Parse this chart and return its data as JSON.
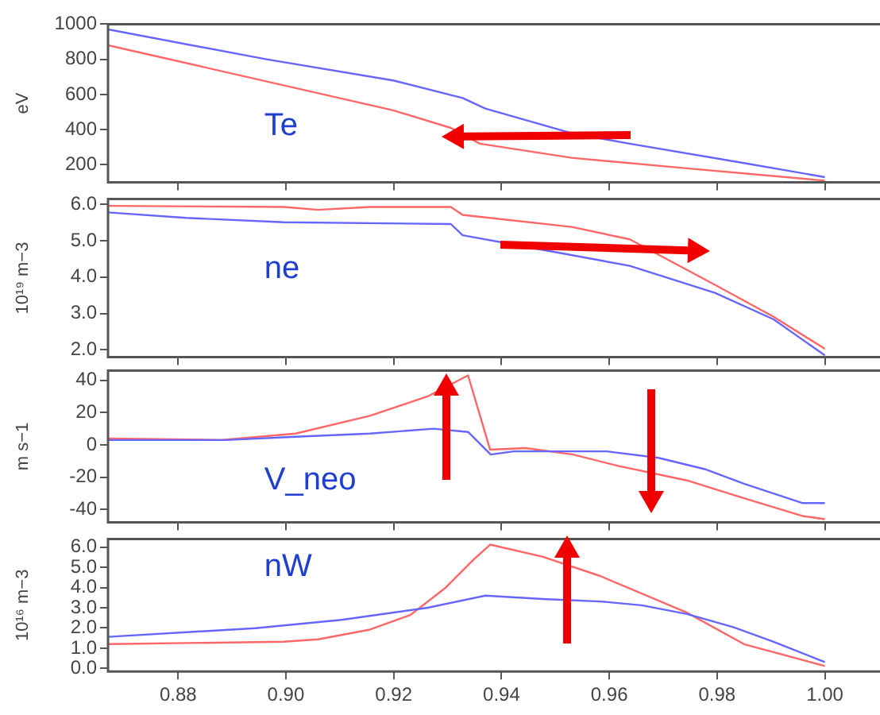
{
  "chart_data": [
    {
      "type": "line",
      "ylabel": "eV",
      "annotations": [
        "Te"
      ],
      "xlim": [
        0.867,
        1.012
      ],
      "xticks": [
        0.88,
        0.9,
        0.92,
        0.94,
        0.96,
        0.98,
        1.0
      ],
      "ylim": [
        100,
        1000
      ],
      "yticks": [
        200,
        400,
        600,
        800,
        1000
      ],
      "tick_labels": "y",
      "grid": false,
      "legend": false,
      "series": [
        {
          "color": "#6666ff",
          "x": [
            0.867,
            0.8964,
            0.9199,
            0.9328,
            0.937,
            0.953,
            0.9638,
            0.985,
            1.0
          ],
          "values": [
            970,
            800,
            680,
            580,
            520,
            380,
            320,
            210,
            130
          ]
        },
        {
          "color": "#ff6666",
          "x": [
            0.867,
            0.9199,
            0.9306,
            0.936,
            0.953,
            0.9744,
            1.0
          ],
          "values": [
            880,
            510,
            410,
            320,
            240,
            180,
            110
          ]
        }
      ]
    },
    {
      "type": "line",
      "ylabel": "10¹⁹ m−3",
      "annotations": [
        "ne"
      ],
      "xlim": [
        0.867,
        1.012
      ],
      "xticks": [
        0.88,
        0.9,
        0.92,
        0.94,
        0.96,
        0.98,
        1.0
      ],
      "ylim": [
        1.8,
        6.15
      ],
      "yticks": [
        {
          "value": 2,
          "label": "2.0"
        },
        {
          "value": 3,
          "label": "3.0"
        },
        {
          "value": 4,
          "label": "4.0"
        },
        {
          "value": 5,
          "label": "5.0"
        },
        {
          "value": 6,
          "label": "6.0"
        }
      ],
      "tick_labels": "y",
      "grid": false,
      "legend": false,
      "series": [
        {
          "color": "#6666ff",
          "x": [
            0.867,
            0.8815,
            0.8996,
            0.9306,
            0.9328,
            0.9477,
            0.9638,
            0.9796,
            0.9905,
            1.0
          ],
          "values": [
            5.78,
            5.63,
            5.51,
            5.46,
            5.15,
            4.75,
            4.31,
            3.57,
            2.84,
            1.85
          ]
        },
        {
          "color": "#ff6666",
          "x": [
            0.867,
            0.8996,
            0.906,
            0.9156,
            0.9306,
            0.9328,
            0.953,
            0.9638,
            0.9796,
            0.9905,
            1.0
          ],
          "values": [
            5.96,
            5.93,
            5.85,
            5.93,
            5.93,
            5.71,
            5.38,
            5.04,
            3.79,
            2.91,
            2.03
          ]
        }
      ]
    },
    {
      "type": "line",
      "ylabel": "m s−1",
      "annotations": [
        "V_neo"
      ],
      "xlim": [
        0.867,
        1.012
      ],
      "xticks": [
        0.88,
        0.9,
        0.92,
        0.94,
        0.96,
        0.98,
        1.0
      ],
      "ylim": [
        -48,
        46
      ],
      "yticks": [
        -40,
        -20,
        0,
        20,
        40
      ],
      "tick_labels": "y",
      "grid": false,
      "legend": false,
      "series": [
        {
          "color": "#6666ff",
          "x": [
            0.867,
            0.8889,
            0.9018,
            0.9156,
            0.9274,
            0.9338,
            0.938,
            0.9423,
            0.9595,
            0.9691,
            0.9777,
            0.985,
            0.9958,
            1.0
          ],
          "values": [
            3,
            3,
            5,
            7,
            10,
            8,
            -6,
            -4,
            -4,
            -8,
            -15,
            -24,
            -36,
            -36
          ]
        },
        {
          "color": "#ff6666",
          "x": [
            0.867,
            0.8879,
            0.9018,
            0.9156,
            0.9263,
            0.9338,
            0.9379,
            0.9445,
            0.9533,
            0.9616,
            0.9744,
            0.985,
            0.9958,
            1.0
          ],
          "values": [
            4,
            3,
            7,
            18,
            30,
            43,
            -3,
            -2,
            -6,
            -13,
            -22,
            -33,
            -44,
            -46
          ]
        }
      ]
    },
    {
      "type": "line",
      "ylabel": "10¹⁶ m−3",
      "annotations": [
        "nW"
      ],
      "xlim": [
        0.867,
        1.012
      ],
      "xticks": [
        {
          "value": 0.88,
          "label": "0.88"
        },
        {
          "value": 0.9,
          "label": "0.90"
        },
        {
          "value": 0.92,
          "label": "0.92"
        },
        {
          "value": 0.94,
          "label": "0.94"
        },
        {
          "value": 0.96,
          "label": "0.96"
        },
        {
          "value": 0.98,
          "label": "0.98"
        },
        {
          "value": 1.0,
          "label": "1.00"
        }
      ],
      "ylim": [
        -0.15,
        6.4
      ],
      "yticks": [
        {
          "value": 0,
          "label": "0.0"
        },
        {
          "value": 1,
          "label": "1.0"
        },
        {
          "value": 2,
          "label": "2.0"
        },
        {
          "value": 3,
          "label": "3.0"
        },
        {
          "value": 4,
          "label": "4.0"
        },
        {
          "value": 5,
          "label": "5.0"
        },
        {
          "value": 6,
          "label": "6.0"
        }
      ],
      "grid": false,
      "legend": false,
      "series": [
        {
          "color": "#6666ff",
          "x": [
            0.867,
            0.8943,
            0.9103,
            0.9263,
            0.937,
            0.9477,
            0.9584,
            0.966,
            0.9744,
            0.983,
            0.9905,
            1.0
          ],
          "values": [
            1.56,
            1.99,
            2.4,
            3.0,
            3.6,
            3.43,
            3.31,
            3.12,
            2.69,
            2.04,
            1.32,
            0.31
          ]
        },
        {
          "color": "#ff6666",
          "x": [
            0.867,
            0.8996,
            0.906,
            0.9156,
            0.9231,
            0.9295,
            0.9349,
            0.9379,
            0.9477,
            0.9584,
            0.9744,
            0.985,
            1.0
          ],
          "values": [
            1.2,
            1.32,
            1.44,
            1.92,
            2.64,
            3.96,
            5.4,
            6.12,
            5.52,
            4.56,
            2.76,
            1.2,
            0.12
          ]
        }
      ]
    }
  ]
}
